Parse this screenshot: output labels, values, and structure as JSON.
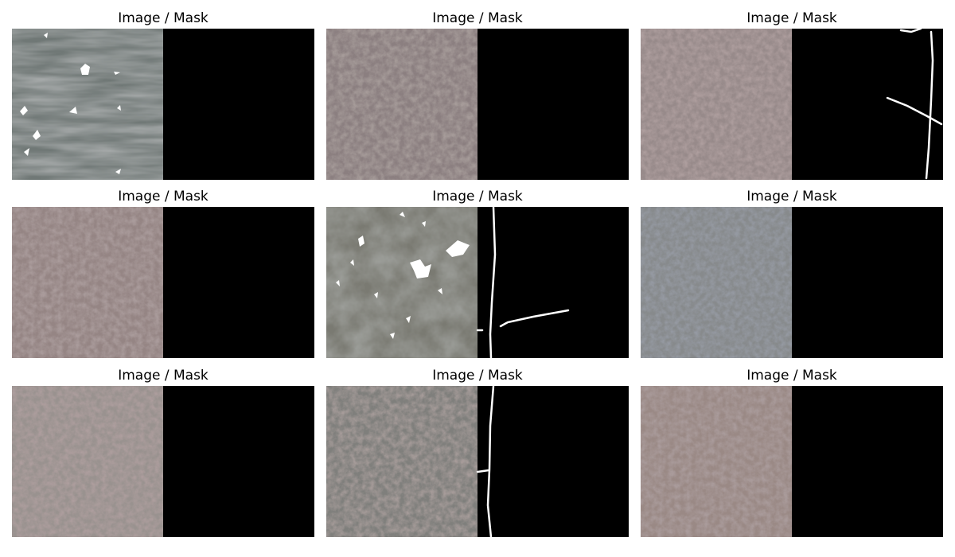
{
  "panels": [
    {
      "title": "Image / Mask",
      "image": "blurred-gray-granite-texture",
      "mask": "empty"
    },
    {
      "title": "Image / Mask",
      "image": "speckled-reddish-granite-texture",
      "mask": "empty"
    },
    {
      "title": "Image / Mask",
      "image": "speckled-granite-texture",
      "mask": "crack-lines"
    },
    {
      "title": "Image / Mask",
      "image": "pinkish-granite-texture",
      "mask": "empty"
    },
    {
      "title": "Image / Mask",
      "image": "gray-stone-with-spots-texture",
      "mask": "crack-lines"
    },
    {
      "title": "Image / Mask",
      "image": "bluish-granite-texture",
      "mask": "empty"
    },
    {
      "title": "Image / Mask",
      "image": "light-granite-texture",
      "mask": "empty"
    },
    {
      "title": "Image / Mask",
      "image": "gray-granite-texture",
      "mask": "crack-lines"
    },
    {
      "title": "Image / Mask",
      "image": "reddish-granite-texture",
      "mask": "empty"
    }
  ],
  "colors": {
    "background": "#ffffff",
    "mask_background": "#000000",
    "mask_foreground": "#ffffff",
    "overlay_marks": "#ffffff"
  }
}
